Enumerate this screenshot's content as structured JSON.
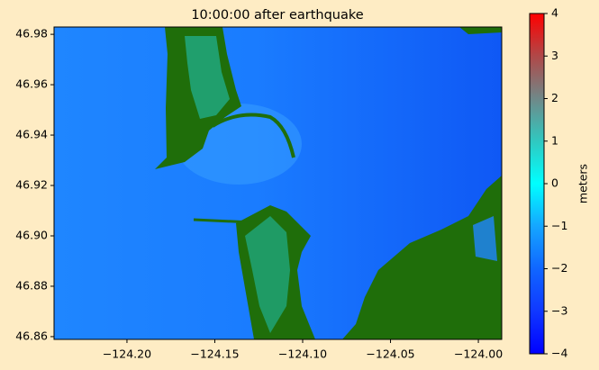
{
  "chart_data": {
    "type": "image",
    "title": "10:00:00 after earthquake",
    "xlim": [
      -124.2415,
      -123.9867
    ],
    "ylim": [
      46.8589,
      46.9829
    ],
    "xticks": [
      {
        "value": -124.2,
        "label": "−124.20"
      },
      {
        "value": -124.15,
        "label": "−124.15"
      },
      {
        "value": -124.1,
        "label": "−124.10"
      },
      {
        "value": -124.05,
        "label": "−124.05"
      },
      {
        "value": -124.0,
        "label": "−124.00"
      }
    ],
    "yticks": [
      46.86,
      46.88,
      {
        "value": 46.9,
        "label": "46.90"
      },
      46.92,
      46.94,
      46.96,
      46.98
    ],
    "colorbar": {
      "label": "meters",
      "lim": [
        -4,
        4
      ],
      "ticks": [
        {
          "value": -4,
          "label": "−4"
        },
        {
          "value": -3,
          "label": "−3"
        },
        {
          "value": -2,
          "label": "−2"
        },
        {
          "value": -1,
          "label": "−1"
        },
        0,
        1,
        2,
        3,
        4
      ]
    }
  }
}
